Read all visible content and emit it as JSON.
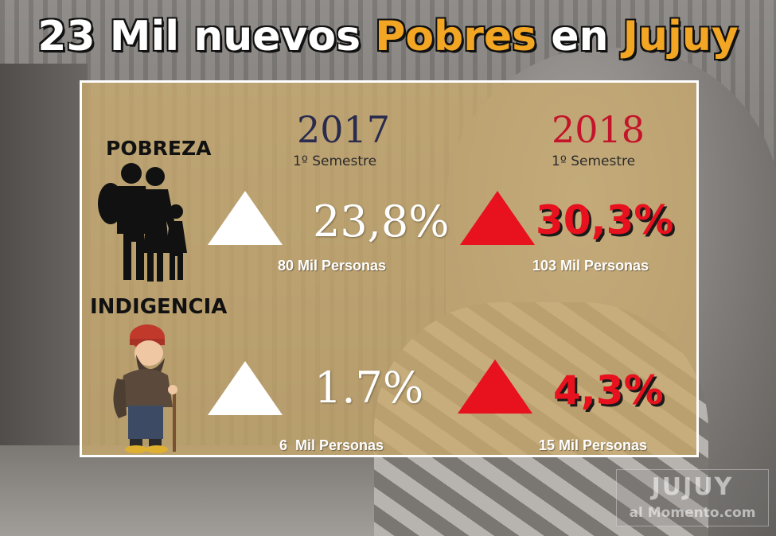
{
  "title": {
    "part1": "23 Mil nuevos ",
    "highlight1": "Pobres",
    "part2": " en ",
    "highlight2": "Jujuy"
  },
  "years": [
    {
      "year": "2017",
      "semester": "1º Semestre"
    },
    {
      "year": "2018",
      "semester": "1º Semestre"
    }
  ],
  "rows": [
    {
      "label": "POBREZA",
      "icon": "family-icon",
      "values": [
        {
          "pct": "23,8%",
          "people": "80 Mil Personas",
          "color": "#ffffff"
        },
        {
          "pct": "30,3%",
          "people": "103 Mil Personas",
          "color": "#e8111e"
        }
      ]
    },
    {
      "label": "INDIGENCIA",
      "icon": "beggar-icon",
      "values": [
        {
          "pct": "1.7%",
          "people": "6  Mil Personas",
          "color": "#ffffff"
        },
        {
          "pct": "4,3%",
          "people": "15 Mil Personas",
          "color": "#e8111e"
        }
      ]
    }
  ],
  "watermark": {
    "top": "JUJUY",
    "bottom": "al Momento.com"
  },
  "colors": {
    "accent": "#f2a623",
    "red": "#e8111e",
    "navy": "#2a2c4e",
    "panel": "#ccac6e"
  }
}
